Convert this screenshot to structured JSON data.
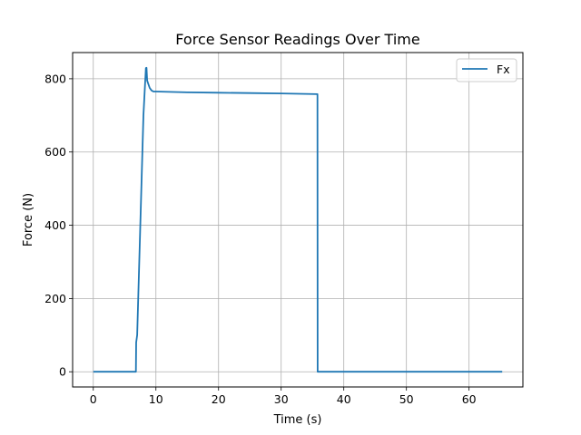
{
  "chart_data": {
    "type": "line",
    "title": "Force Sensor Readings Over Time",
    "xlabel": "Time (s)",
    "ylabel": "Force (N)",
    "xlim": [
      -3.3,
      68.6
    ],
    "ylim": [
      -41.5,
      871.5
    ],
    "xticks": [
      0,
      10,
      20,
      30,
      40,
      50,
      60
    ],
    "yticks": [
      0,
      200,
      400,
      600,
      800
    ],
    "grid": true,
    "legend_position": "top-right",
    "series": [
      {
        "name": "Fx",
        "color": "#1f77b4",
        "x": [
          0,
          6.8,
          6.85,
          7.0,
          8.0,
          8.4,
          8.5,
          8.6,
          8.8,
          9.0,
          9.3,
          9.6,
          10,
          15,
          20,
          25,
          30,
          35.8,
          35.82,
          40,
          50,
          60,
          65.3
        ],
        "y": [
          0,
          0,
          80,
          100,
          700,
          829,
          830,
          795,
          785,
          775,
          768,
          765,
          765,
          763,
          762,
          761,
          760,
          758,
          0,
          0,
          0,
          0,
          0
        ]
      }
    ]
  }
}
